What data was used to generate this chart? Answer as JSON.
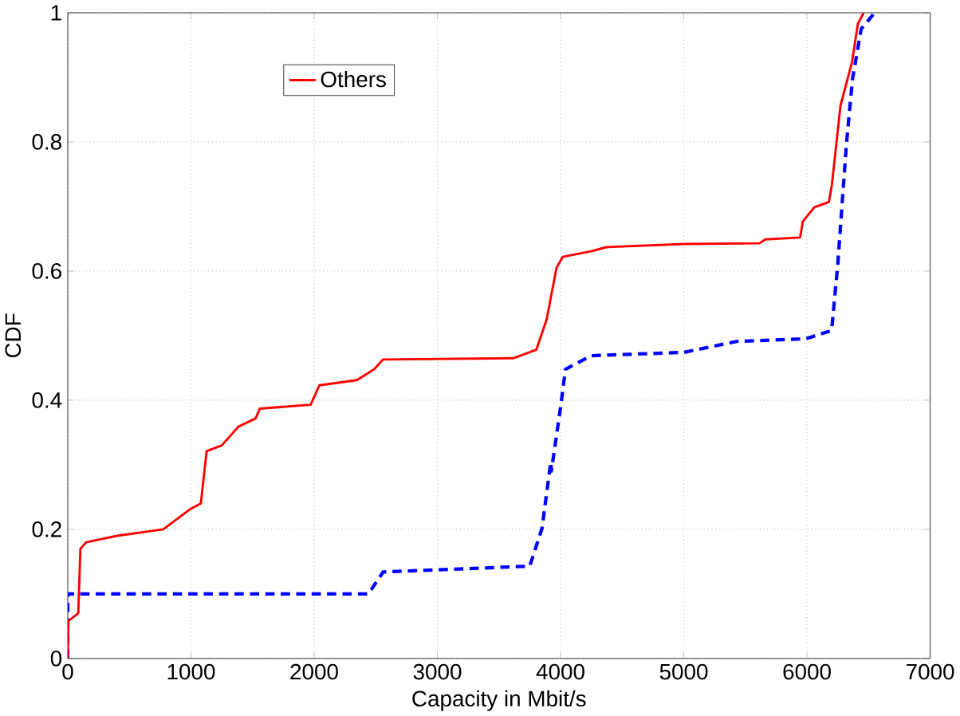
{
  "chart_data": {
    "type": "line",
    "xlabel": "Capacity in Mbit/s",
    "ylabel": "CDF",
    "xlim": [
      0,
      7000
    ],
    "ylim": [
      0,
      1
    ],
    "xticks": [
      0,
      1000,
      2000,
      3000,
      4000,
      5000,
      6000,
      7000
    ],
    "yticks": [
      0,
      0.2,
      0.4,
      0.6,
      0.8,
      1
    ],
    "grid": true,
    "legend": "top left",
    "marker": "none",
    "series": [
      {
        "color": "#0000ff",
        "line_style": "dashed",
        "x": [
          0,
          0,
          2440,
          2560,
          3750,
          3850,
          3920,
          3925,
          4000,
          4040,
          4250,
          5000,
          5430,
          5990,
          6200,
          6250,
          6320,
          6370,
          6440,
          6550
        ],
        "values": [
          0,
          0.1,
          0.1,
          0.134,
          0.143,
          0.202,
          0.304,
          0.29,
          0.389,
          0.448,
          0.469,
          0.474,
          0.491,
          0.495,
          0.508,
          0.61,
          0.796,
          0.898,
          0.975,
          1
        ]
      },
      {
        "name": "Others",
        "color": "#ff0000",
        "line_style": "solid",
        "x": [
          0,
          5,
          85,
          103,
          150,
          400,
          775,
          1000,
          1080,
          1127,
          1250,
          1385,
          1526,
          1559,
          1972,
          2042,
          2347,
          2488,
          2559,
          3615,
          3803,
          3887,
          3967,
          4018,
          4254,
          4371,
          5005,
          5615,
          5662,
          5944,
          5967,
          6061,
          6178,
          6202,
          6272,
          6366,
          6413,
          6460
        ],
        "values": [
          0,
          0.058,
          0.07,
          0.17,
          0.18,
          0.19,
          0.2,
          0.232,
          0.24,
          0.321,
          0.33,
          0.359,
          0.372,
          0.387,
          0.393,
          0.423,
          0.431,
          0.448,
          0.463,
          0.465,
          0.478,
          0.525,
          0.605,
          0.622,
          0.631,
          0.637,
          0.642,
          0.643,
          0.649,
          0.652,
          0.677,
          0.699,
          0.707,
          0.733,
          0.856,
          0.924,
          0.983,
          1
        ]
      }
    ]
  }
}
